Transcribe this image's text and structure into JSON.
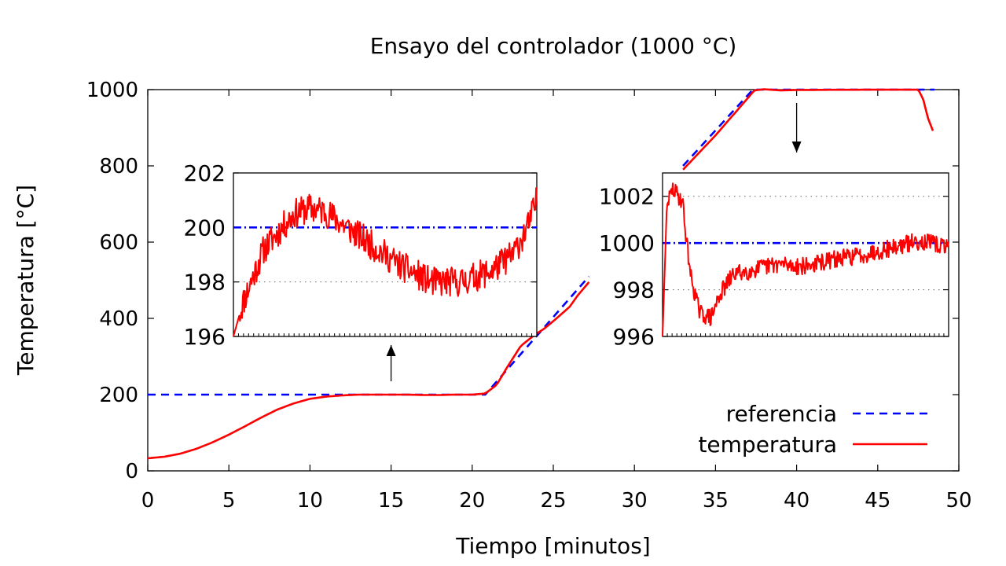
{
  "chart_data": {
    "type": "line",
    "title": "Ensayo del controlador (1000 °C)",
    "xlabel": "Tiempo [minutos]",
    "ylabel": "Temperatura [°C]",
    "xlim": [
      0,
      50
    ],
    "ylim": [
      0,
      1000
    ],
    "xticks": [
      "0",
      "5",
      "10",
      "15",
      "20",
      "25",
      "30",
      "35",
      "40",
      "45",
      "50"
    ],
    "yticks": [
      "0",
      "200",
      "400",
      "600",
      "800",
      "1000"
    ],
    "legend_position": "bottom-right",
    "series": [
      {
        "name": "referencia",
        "style": "dashed",
        "color": "#0000ff",
        "segments": [
          {
            "x": [
              0,
              20.8,
              27.2
            ],
            "y": [
              200,
              200,
              510
            ]
          },
          {
            "x": [
              33.0,
              37.3,
              48.5
            ],
            "y": [
              800,
              1000,
              1000
            ]
          }
        ]
      },
      {
        "name": "temperatura",
        "style": "solid",
        "color": "#ff0000",
        "segments": [
          {
            "x": [
              0,
              1,
              2,
              3,
              4,
              5,
              6,
              7,
              8,
              9,
              10,
              11,
              12,
              13,
              14,
              15,
              16,
              17,
              18,
              19,
              20,
              20.8,
              21.5,
              22.2,
              23,
              23.8,
              24.5,
              25.2,
              26,
              26.5,
              27.2
            ],
            "y": [
              33,
              37,
              45,
              58,
              75,
              95,
              117,
              140,
              161,
              177,
              189,
              195,
              198,
              200,
              200,
              200,
              200,
              199,
              199,
              200,
              200,
              203,
              225,
              275,
              328,
              355,
              375,
              400,
              430,
              460,
              495
            ]
          },
          {
            "x": [
              33.0,
              35,
              37.4,
              38,
              39,
              40,
              42,
              45,
              47.5,
              47.8,
              48.1,
              48.4
            ],
            "y": [
              790,
              880,
              998,
              1001,
              998,
              999,
              999.5,
              999.8,
              999.7,
              975,
              925,
              892
            ]
          }
        ]
      }
    ],
    "annotations": [
      {
        "type": "arrow",
        "direction": "up",
        "x": 15,
        "y_from": 235,
        "y_to": 330
      },
      {
        "type": "arrow",
        "direction": "down",
        "x": 40,
        "y_from": 965,
        "y_to": 835
      }
    ],
    "insets": [
      {
        "ylim": [
          196,
          202
        ],
        "yticks": [
          "196",
          "198",
          "200",
          "202"
        ],
        "grid_y": [
          198
        ],
        "reference": 200,
        "temperature_profile": {
          "x": [
            0,
            0.03,
            0.1,
            0.2,
            0.25,
            0.3,
            0.35,
            0.45,
            0.55,
            0.65,
            0.75,
            0.85,
            0.92,
            0.97,
            1
          ],
          "y": [
            196,
            197.2,
            199.2,
            200.5,
            200.7,
            200.6,
            200.2,
            199.4,
            198.6,
            198.0,
            198.0,
            198.4,
            199.0,
            200.0,
            201.0
          ]
        }
      },
      {
        "ylim": [
          996,
          1003
        ],
        "yticks": [
          "996",
          "998",
          "1000",
          "1002"
        ],
        "grid_y": [
          998,
          1002
        ],
        "reference": 1000,
        "temperature_profile": {
          "x": [
            0,
            0.015,
            0.035,
            0.07,
            0.08,
            0.1,
            0.13,
            0.17,
            0.2,
            0.25,
            0.3,
            0.4,
            0.5,
            0.6,
            0.7,
            0.8,
            0.9,
            1
          ],
          "y": [
            996,
            1001.6,
            1002.3,
            1001.8,
            1000.5,
            998.5,
            997.0,
            996.8,
            997.8,
            998.7,
            998.8,
            999.1,
            999.0,
            999.3,
            999.5,
            999.8,
            1000.1,
            999.8
          ]
        }
      }
    ]
  }
}
